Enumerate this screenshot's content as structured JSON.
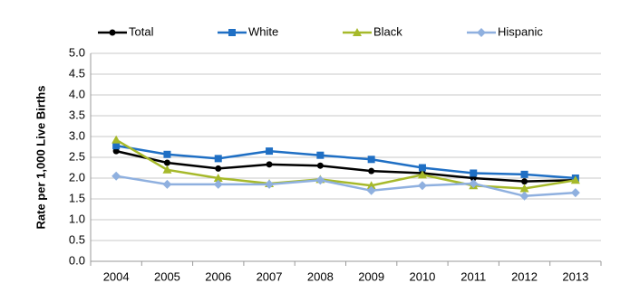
{
  "chart_data": {
    "type": "line",
    "y_label": "Rate per 1,000 Live Births",
    "categories": [
      "2004",
      "2005",
      "2006",
      "2007",
      "2008",
      "2009",
      "2010",
      "2011",
      "2012",
      "2013"
    ],
    "series": [
      {
        "name": "Total",
        "color": "#000000",
        "marker": "circle",
        "values": [
          2.65,
          2.37,
          2.23,
          2.33,
          2.3,
          2.17,
          2.12,
          2.0,
          1.92,
          1.95
        ]
      },
      {
        "name": "White",
        "color": "#1f6fc4",
        "marker": "square",
        "values": [
          2.78,
          2.57,
          2.47,
          2.65,
          2.55,
          2.45,
          2.25,
          2.12,
          2.09,
          2.0
        ]
      },
      {
        "name": "Black",
        "color": "#a6b92a",
        "marker": "triangle",
        "values": [
          2.92,
          2.2,
          2.0,
          1.87,
          1.97,
          1.82,
          2.08,
          1.82,
          1.75,
          1.95
        ]
      },
      {
        "name": "Hispanic",
        "color": "#8fb0df",
        "marker": "diamond",
        "values": [
          2.05,
          1.85,
          1.85,
          1.85,
          1.95,
          1.7,
          1.82,
          1.87,
          1.57,
          1.65
        ]
      }
    ],
    "ylim": [
      0,
      5
    ],
    "yticks": [
      {
        "value": 0,
        "label": "0.0"
      },
      {
        "value": 0.5,
        "label": "0.5"
      },
      {
        "value": 1,
        "label": "1.0"
      },
      {
        "value": 1.5,
        "label": "1.5"
      },
      {
        "value": 2,
        "label": "2.0"
      },
      {
        "value": 2.5,
        "label": "2.5"
      },
      {
        "value": 3,
        "label": "3.0"
      },
      {
        "value": 3.5,
        "label": "3.5"
      },
      {
        "value": 4,
        "label": "4.0"
      },
      {
        "value": 4.5,
        "label": "4.5"
      },
      {
        "value": 5,
        "label": "5.0"
      }
    ],
    "grid": true
  }
}
